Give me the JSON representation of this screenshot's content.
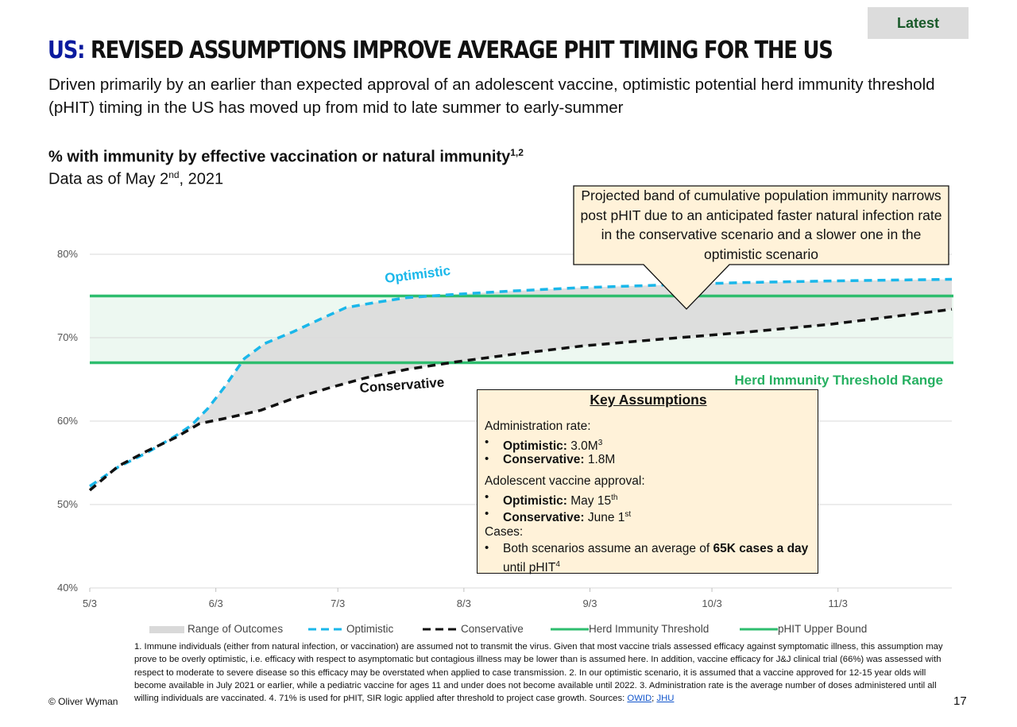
{
  "header": {
    "latest_badge": "Latest",
    "title_prefix": "US:",
    "title_main": "REVISED ASSUMPTIONS IMPROVE AVERAGE PHIT TIMING FOR THE US",
    "subtitle": "Driven primarily by an earlier than expected approval of an adolescent vaccine, optimistic potential herd immunity threshold (pHIT) timing in the US has moved up from mid to late summer to early-summer"
  },
  "chart_heading": {
    "text": "% with immunity by effective vaccination or natural immunity",
    "superscript": "1,2",
    "date_prefix": "Data as of May 2",
    "date_sup": "nd",
    "date_suffix": ", 2021"
  },
  "callout": {
    "text": "Projected band of cumulative population immunity narrows post pHIT due to an anticipated faster natural infection rate in the conservative scenario and a slower one in the optimistic scenario"
  },
  "key_assumptions": {
    "title": "Key Assumptions",
    "admin_heading": "Administration rate:",
    "admin_opt_label": "Optimistic:",
    "admin_opt_value": " 3.0M",
    "admin_opt_sup": "3",
    "admin_con_label": "Conservative:",
    "admin_con_value": " 1.8M",
    "approval_heading": "Adolescent vaccine approval:",
    "approval_opt_label": "Optimistic:",
    "approval_opt_value": " May 15",
    "approval_opt_sup": "th",
    "approval_con_label": "Conservative:",
    "approval_con_value": " June 1",
    "approval_con_sup": "st",
    "cases_heading": "Cases:",
    "cases_text_a": "Both scenarios assume an average of ",
    "cases_text_bold": "65K cases a day",
    "cases_text_b": "until pHIT",
    "cases_text_sup": "4",
    "bullet": "•"
  },
  "chart_data": {
    "type": "line",
    "x_unit": "date",
    "x_ticks": [
      "5/3",
      "6/3",
      "7/3",
      "8/3",
      "9/3",
      "10/3",
      "11/3"
    ],
    "x_tick_dates": [
      "2021-05-03",
      "2021-06-03",
      "2021-07-03",
      "2021-08-03",
      "2021-09-03",
      "2021-10-03",
      "2021-11-03"
    ],
    "xlim": [
      "2021-05-03",
      "2021-12-01"
    ],
    "y_ticks": [
      "40%",
      "50%",
      "60%",
      "70%",
      "80%"
    ],
    "ylim": [
      40,
      80
    ],
    "grid": true,
    "series": [
      {
        "name": "Optimistic",
        "style": "dashed",
        "color": "#1ab7ea",
        "points": [
          [
            "2021-05-03",
            52.2
          ],
          [
            "2021-05-10",
            54.5
          ],
          [
            "2021-05-17",
            56.2
          ],
          [
            "2021-05-24",
            58.2
          ],
          [
            "2021-05-28",
            59.5
          ],
          [
            "2021-06-01",
            61.5
          ],
          [
            "2021-06-05",
            64.0
          ],
          [
            "2021-06-10",
            67.5
          ],
          [
            "2021-06-15",
            69.3
          ],
          [
            "2021-06-22",
            70.7
          ],
          [
            "2021-06-29",
            72.3
          ],
          [
            "2021-07-05",
            73.6
          ],
          [
            "2021-07-12",
            74.2
          ],
          [
            "2021-07-20",
            74.8
          ],
          [
            "2021-08-01",
            75.2
          ],
          [
            "2021-08-15",
            75.6
          ],
          [
            "2021-09-01",
            76.0
          ],
          [
            "2021-09-20",
            76.3
          ],
          [
            "2021-10-10",
            76.6
          ],
          [
            "2021-11-01",
            76.8
          ],
          [
            "2021-12-01",
            77.0
          ]
        ]
      },
      {
        "name": "Conservative",
        "style": "dashed",
        "color": "#111111",
        "points": [
          [
            "2021-05-03",
            51.7
          ],
          [
            "2021-05-10",
            54.6
          ],
          [
            "2021-05-17",
            56.4
          ],
          [
            "2021-05-24",
            58.0
          ],
          [
            "2021-05-30",
            59.7
          ],
          [
            "2021-06-06",
            60.4
          ],
          [
            "2021-06-14",
            61.3
          ],
          [
            "2021-06-22",
            62.7
          ],
          [
            "2021-07-01",
            64.0
          ],
          [
            "2021-07-10",
            65.2
          ],
          [
            "2021-07-20",
            66.2
          ],
          [
            "2021-08-01",
            67.1
          ],
          [
            "2021-08-15",
            68.0
          ],
          [
            "2021-09-01",
            69.0
          ],
          [
            "2021-09-20",
            69.8
          ],
          [
            "2021-10-10",
            70.6
          ],
          [
            "2021-11-01",
            71.6
          ],
          [
            "2021-12-01",
            73.4
          ]
        ]
      }
    ],
    "herd_immunity_threshold": [
      67,
      75
    ],
    "range_of_outcomes": "shaded area between Optimistic and Conservative",
    "labels": {
      "optimistic": "Optimistic",
      "conservative": "Conservative",
      "band": "Herd Immunity Threshold Range"
    },
    "legend": [
      "Range of Outcomes",
      "Optimistic",
      "Conservative",
      "Herd Immunity Threshold",
      "pHIT Upper Bound"
    ],
    "legend_position": "bottom",
    "colors": {
      "optimistic": "#1ab7ea",
      "conservative": "#111111",
      "threshold": "#2ebd6e",
      "band_fill": "#edf8f1",
      "range_fill": "#d9d9d9",
      "band_label": "#26b061"
    }
  },
  "footnote": {
    "text": "1. Immune individuals (either from natural infection, or vaccination) are assumed not to transmit the virus. Given that most vaccine trials assessed efficacy against symptomatic illness, this assumption may prove to be overly optimistic, i.e. efficacy with respect to asymptomatic but contagious illness may be lower than is assumed here. In addition, vaccine efficacy for J&J clinical trial (66%) was assessed with respect to moderate to severe disease so this efficacy may be overstated when applied to case transmission. 2. In our optimistic scenario, it is assumed that a vaccine approved for 12-15 year olds will become available in July 2021 or earlier, while a pediatric vaccine for ages 11 and under does not become available until 2022. 3. Administration rate is the average number of doses administered until all willing individuals are vaccinated. 4.  71% is used for pHIT, SIR logic applied after threshold to project case growth.  Sources: ",
    "source_1": "OWID",
    "separator": ";",
    "source_2": "JHU"
  },
  "footer": {
    "copyright": "© Oliver Wyman",
    "page_number": "17"
  }
}
